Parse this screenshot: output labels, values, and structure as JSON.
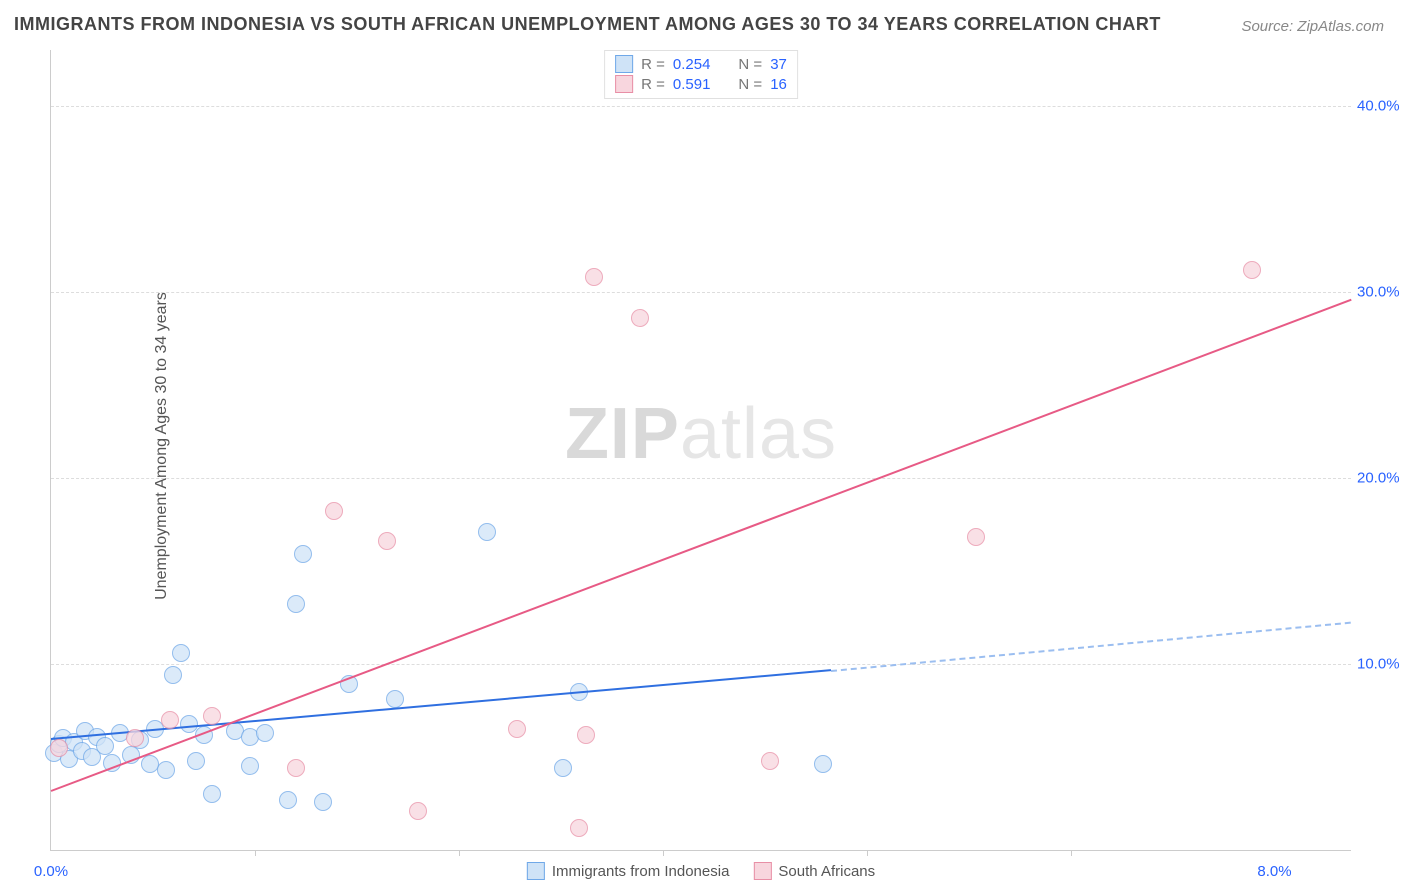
{
  "title": "IMMIGRANTS FROM INDONESIA VS SOUTH AFRICAN UNEMPLOYMENT AMONG AGES 30 TO 34 YEARS CORRELATION CHART",
  "source_label": "Source: ZipAtlas.com",
  "ylabel": "Unemployment Among Ages 30 to 34 years",
  "watermark_bold": "ZIP",
  "watermark_light": "atlas",
  "chart": {
    "type": "scatter",
    "xlim": [
      0,
      8.5
    ],
    "ylim": [
      0,
      43
    ],
    "xticks": [
      {
        "v": 0.0,
        "label": "0.0%"
      },
      {
        "v": 8.0,
        "label": "8.0%"
      }
    ],
    "x_minor_ticks": [
      1.333,
      2.667,
      4.0,
      5.333,
      6.667
    ],
    "yticks": [
      {
        "v": 10,
        "label": "10.0%"
      },
      {
        "v": 20,
        "label": "20.0%"
      },
      {
        "v": 30,
        "label": "30.0%"
      },
      {
        "v": 40,
        "label": "40.0%"
      }
    ],
    "background_color": "#ffffff",
    "grid_color": "#dddddd",
    "axis_color": "#cccccc",
    "tick_label_color": "#2962ff",
    "point_radius": 9,
    "series": [
      {
        "name": "Immigrants from Indonesia",
        "fill": "#cfe3f7",
        "stroke": "#6fa8e8",
        "fill_opacity": 0.75,
        "R_label": "R =",
        "R": "0.254",
        "N_label": "N =",
        "N": "37",
        "trend": {
          "x0": 0.0,
          "y0": 6.0,
          "x_solid_end": 5.1,
          "y_solid_end": 9.7,
          "x_dash_end": 8.5,
          "y_dash_end": 12.3,
          "color": "#2f6fe0",
          "dash_color": "#9bbef0"
        },
        "points": [
          {
            "x": 0.02,
            "y": 5.2
          },
          {
            "x": 0.05,
            "y": 5.7
          },
          {
            "x": 0.08,
            "y": 6.0
          },
          {
            "x": 0.12,
            "y": 4.9
          },
          {
            "x": 0.15,
            "y": 5.8
          },
          {
            "x": 0.2,
            "y": 5.3
          },
          {
            "x": 0.22,
            "y": 6.4
          },
          {
            "x": 0.27,
            "y": 5.0
          },
          {
            "x": 0.3,
            "y": 6.1
          },
          {
            "x": 0.35,
            "y": 5.6
          },
          {
            "x": 0.4,
            "y": 4.7
          },
          {
            "x": 0.45,
            "y": 6.3
          },
          {
            "x": 0.52,
            "y": 5.1
          },
          {
            "x": 0.58,
            "y": 5.9
          },
          {
            "x": 0.65,
            "y": 4.6
          },
          {
            "x": 0.68,
            "y": 6.5
          },
          {
            "x": 0.75,
            "y": 4.3
          },
          {
            "x": 0.8,
            "y": 9.4
          },
          {
            "x": 0.85,
            "y": 10.6
          },
          {
            "x": 0.9,
            "y": 6.8
          },
          {
            "x": 0.95,
            "y": 4.8
          },
          {
            "x": 1.0,
            "y": 6.2
          },
          {
            "x": 1.05,
            "y": 3.0
          },
          {
            "x": 1.2,
            "y": 6.4
          },
          {
            "x": 1.3,
            "y": 6.1
          },
          {
            "x": 1.3,
            "y": 4.5
          },
          {
            "x": 1.4,
            "y": 6.3
          },
          {
            "x": 1.55,
            "y": 2.7
          },
          {
            "x": 1.6,
            "y": 13.2
          },
          {
            "x": 1.65,
            "y": 15.9
          },
          {
            "x": 1.78,
            "y": 2.6
          },
          {
            "x": 1.95,
            "y": 8.9
          },
          {
            "x": 2.25,
            "y": 8.1
          },
          {
            "x": 2.85,
            "y": 17.1
          },
          {
            "x": 3.35,
            "y": 4.4
          },
          {
            "x": 3.45,
            "y": 8.5
          },
          {
            "x": 5.05,
            "y": 4.6
          }
        ]
      },
      {
        "name": "South Africans",
        "fill": "#f8d6de",
        "stroke": "#e88fa6",
        "fill_opacity": 0.75,
        "R_label": "R =",
        "R": "0.591",
        "N_label": "N =",
        "N": "16",
        "trend": {
          "x0": 0.0,
          "y0": 3.2,
          "x_solid_end": 8.5,
          "y_solid_end": 29.6,
          "color": "#e75a85"
        },
        "points": [
          {
            "x": 0.05,
            "y": 5.5
          },
          {
            "x": 0.55,
            "y": 6.0
          },
          {
            "x": 0.78,
            "y": 7.0
          },
          {
            "x": 1.05,
            "y": 7.2
          },
          {
            "x": 1.6,
            "y": 4.4
          },
          {
            "x": 1.85,
            "y": 18.2
          },
          {
            "x": 2.2,
            "y": 16.6
          },
          {
            "x": 2.4,
            "y": 2.1
          },
          {
            "x": 3.05,
            "y": 6.5
          },
          {
            "x": 3.45,
            "y": 1.2
          },
          {
            "x": 3.5,
            "y": 6.2
          },
          {
            "x": 3.55,
            "y": 30.8
          },
          {
            "x": 3.85,
            "y": 28.6
          },
          {
            "x": 4.7,
            "y": 4.8
          },
          {
            "x": 6.05,
            "y": 16.8
          },
          {
            "x": 7.85,
            "y": 31.2
          }
        ]
      }
    ]
  }
}
